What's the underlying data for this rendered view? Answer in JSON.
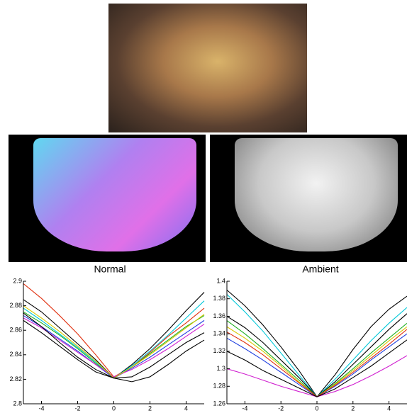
{
  "captions": [
    "Normal",
    "Ambient"
  ],
  "chart_data": [
    {
      "type": "line",
      "x": [
        -5,
        -4,
        -3,
        -2,
        -1,
        0,
        1,
        2,
        3,
        4,
        5
      ],
      "xlim": [
        -5,
        5
      ],
      "xticks": [
        -4,
        -2,
        0,
        2,
        4
      ],
      "ylim": [
        2.8,
        2.9
      ],
      "yticks": [
        2.8,
        2.82,
        2.84,
        2.86,
        2.88,
        2.9
      ],
      "series": [
        {
          "color": "#000000",
          "values": [
            2.885,
            2.875,
            2.862,
            2.849,
            2.836,
            2.821,
            2.832,
            2.845,
            2.86,
            2.876,
            2.891
          ]
        },
        {
          "color": "#e03010",
          "values": [
            2.898,
            2.886,
            2.872,
            2.857,
            2.84,
            2.822,
            2.83,
            2.842,
            2.855,
            2.866,
            2.878
          ]
        },
        {
          "color": "#00c8d8",
          "values": [
            2.878,
            2.868,
            2.857,
            2.846,
            2.834,
            2.821,
            2.831,
            2.843,
            2.856,
            2.87,
            2.884
          ]
        },
        {
          "color": "#20b020",
          "values": [
            2.875,
            2.866,
            2.856,
            2.845,
            2.833,
            2.821,
            2.83,
            2.841,
            2.852,
            2.863,
            2.872
          ]
        },
        {
          "color": "#2040e0",
          "values": [
            2.872,
            2.863,
            2.853,
            2.843,
            2.832,
            2.821,
            2.829,
            2.838,
            2.848,
            2.858,
            2.868
          ]
        },
        {
          "color": "#d020d0",
          "values": [
            2.87,
            2.862,
            2.852,
            2.842,
            2.832,
            2.822,
            2.828,
            2.836,
            2.845,
            2.855,
            2.865
          ]
        },
        {
          "color": "#d8c800",
          "values": [
            2.88,
            2.87,
            2.859,
            2.847,
            2.835,
            2.821,
            2.83,
            2.84,
            2.851,
            2.862,
            2.873
          ]
        },
        {
          "color": "#000000",
          "values": [
            2.868,
            2.858,
            2.847,
            2.836,
            2.826,
            2.821,
            2.818,
            2.822,
            2.832,
            2.843,
            2.852
          ]
        },
        {
          "color": "#000000",
          "values": [
            2.874,
            2.863,
            2.85,
            2.838,
            2.828,
            2.821,
            2.822,
            2.83,
            2.84,
            2.85,
            2.858
          ]
        }
      ]
    },
    {
      "type": "line",
      "x": [
        -5,
        -4,
        -3,
        -2,
        -1,
        0,
        1,
        2,
        3,
        4,
        5
      ],
      "xlim": [
        -5,
        5
      ],
      "xticks": [
        -4,
        -2,
        0,
        2,
        4
      ],
      "ylim": [
        1.26,
        1.4
      ],
      "yticks": [
        1.26,
        1.28,
        1.3,
        1.32,
        1.34,
        1.36,
        1.38,
        1.4
      ],
      "series": [
        {
          "color": "#000000",
          "values": [
            1.39,
            1.372,
            1.35,
            1.325,
            1.298,
            1.268,
            1.293,
            1.322,
            1.348,
            1.368,
            1.383
          ]
        },
        {
          "color": "#00c8d8",
          "values": [
            1.385,
            1.365,
            1.343,
            1.318,
            1.293,
            1.268,
            1.288,
            1.31,
            1.332,
            1.352,
            1.37
          ]
        },
        {
          "color": "#000000",
          "values": [
            1.36,
            1.347,
            1.33,
            1.31,
            1.29,
            1.268,
            1.285,
            1.305,
            1.325,
            1.345,
            1.363
          ]
        },
        {
          "color": "#20b020",
          "values": [
            1.355,
            1.34,
            1.323,
            1.305,
            1.287,
            1.268,
            1.283,
            1.3,
            1.318,
            1.335,
            1.352
          ]
        },
        {
          "color": "#d8c800",
          "values": [
            1.348,
            1.335,
            1.32,
            1.303,
            1.285,
            1.268,
            1.282,
            1.298,
            1.315,
            1.332,
            1.348
          ]
        },
        {
          "color": "#2040e0",
          "values": [
            1.335,
            1.323,
            1.31,
            1.296,
            1.282,
            1.268,
            1.28,
            1.294,
            1.31,
            1.325,
            1.34
          ]
        },
        {
          "color": "#e03010",
          "values": [
            1.342,
            1.33,
            1.316,
            1.3,
            1.284,
            1.268,
            1.281,
            1.296,
            1.312,
            1.328,
            1.345
          ]
        },
        {
          "color": "#d020d0",
          "values": [
            1.3,
            1.294,
            1.287,
            1.28,
            1.274,
            1.268,
            1.274,
            1.282,
            1.292,
            1.303,
            1.315
          ]
        },
        {
          "color": "#000000",
          "values": [
            1.32,
            1.31,
            1.298,
            1.288,
            1.278,
            1.268,
            1.277,
            1.29,
            1.303,
            1.318,
            1.333
          ]
        }
      ]
    }
  ]
}
